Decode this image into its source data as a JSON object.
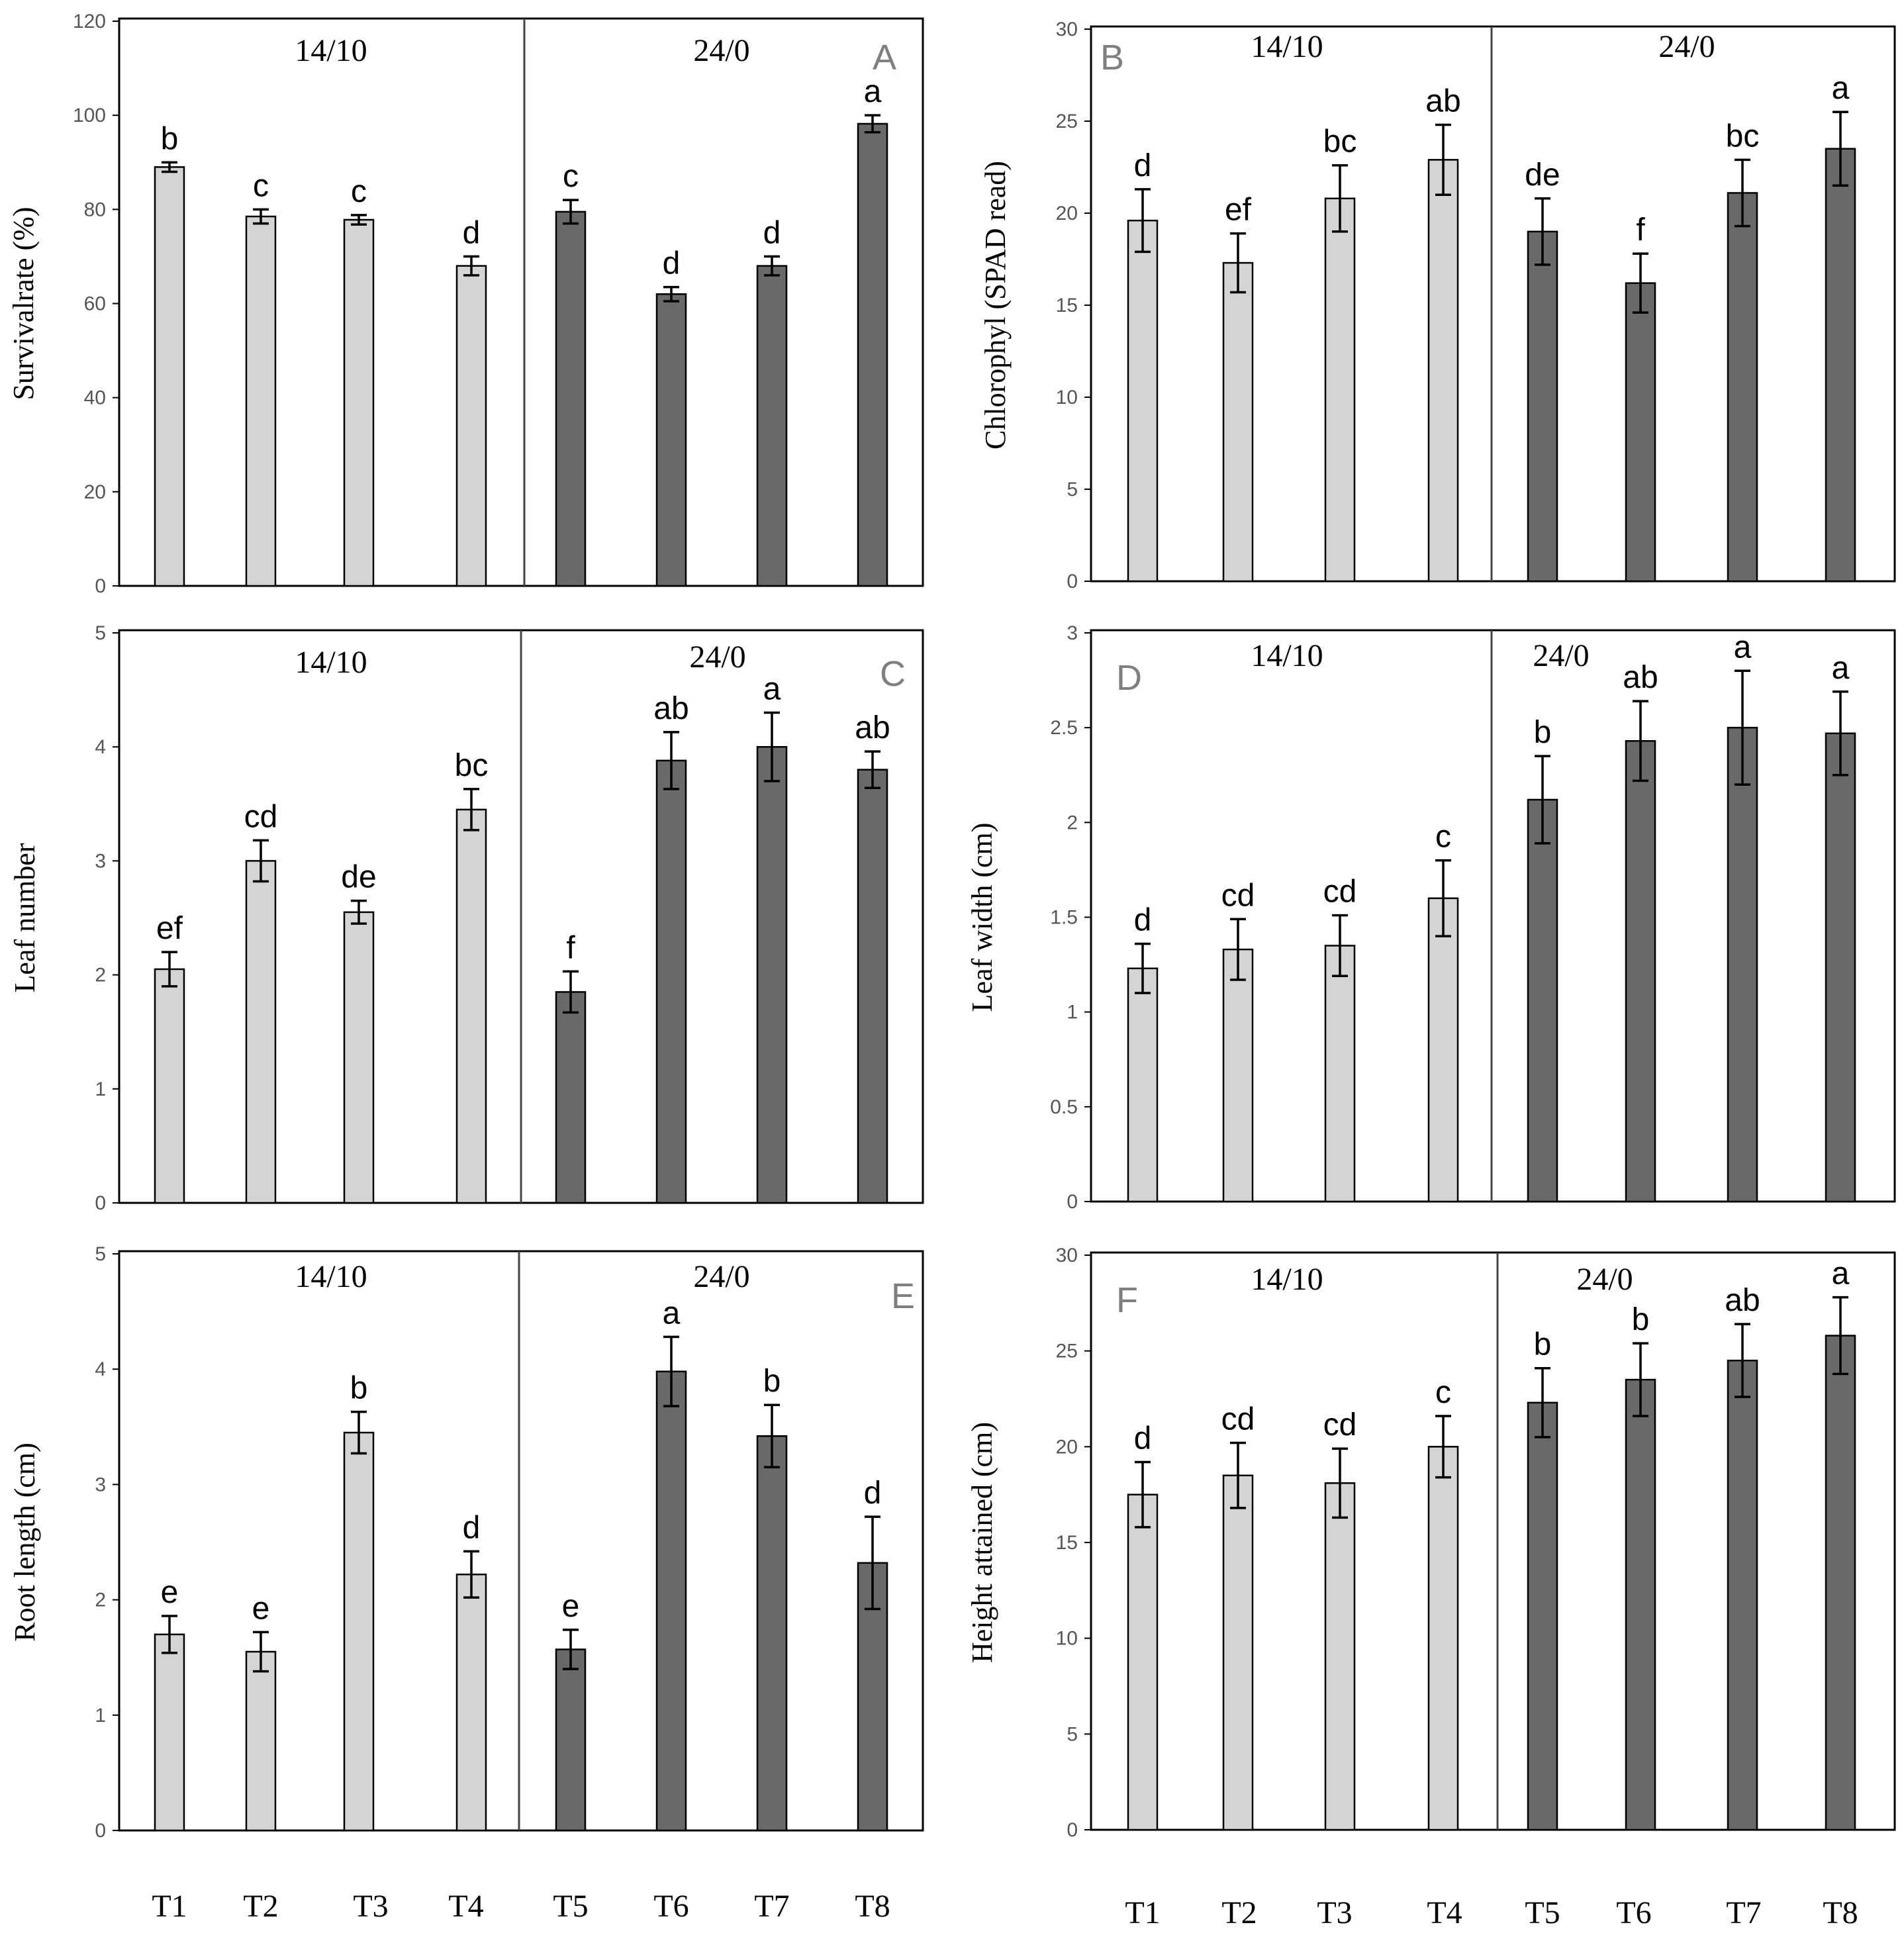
{
  "colors": {
    "light_bar": "#d4d4d4",
    "dark_bar": "#696969",
    "axis": "#000000"
  },
  "groups": [
    "14/10",
    "24/0"
  ],
  "x_categories": [
    "T1",
    "T2",
    "T3",
    "T4",
    "T5",
    "T6",
    "T7",
    "T8"
  ],
  "chart_data": [
    {
      "type": "bar",
      "panel": "A",
      "ylabel": "Survivalrate (%)",
      "ylim": [
        0,
        120
      ],
      "yticks": [
        "0",
        "20",
        "40",
        "60",
        "80",
        "100",
        "120"
      ],
      "groups": [
        "14/10",
        "24/0"
      ],
      "categories": [
        "T1",
        "T2",
        "T3",
        "T4",
        "T5",
        "T6",
        "T7",
        "T8"
      ],
      "values": [
        89,
        78.5,
        77.8,
        68,
        79.5,
        62,
        68,
        98.2
      ],
      "errors": [
        1,
        1.5,
        1,
        2,
        2.5,
        1.5,
        2,
        1.8
      ],
      "labels": [
        "b",
        "c",
        "c",
        "d",
        "c",
        "d",
        "d",
        "a"
      ]
    },
    {
      "type": "bar",
      "panel": "B",
      "ylabel": "Chlorophyl (SPAD read)",
      "ylim": [
        0,
        30
      ],
      "yticks": [
        "0",
        "5",
        "10",
        "15",
        "20",
        "25",
        "30"
      ],
      "groups": [
        "14/10",
        "24/0"
      ],
      "categories": [
        "T1",
        "T2",
        "T3",
        "T4",
        "T5",
        "T6",
        "T7",
        "T8"
      ],
      "values": [
        19.6,
        17.3,
        20.8,
        22.9,
        19,
        16.2,
        21.1,
        23.5
      ],
      "errors": [
        1.7,
        1.6,
        1.8,
        1.9,
        1.8,
        1.6,
        1.8,
        2
      ],
      "labels": [
        "d",
        "ef",
        "bc",
        "ab",
        "de",
        "f",
        "bc",
        "a"
      ]
    },
    {
      "type": "bar",
      "panel": "C",
      "ylabel": "Leaf number",
      "ylim": [
        0,
        5
      ],
      "yticks": [
        "0",
        "1",
        "2",
        "3",
        "4",
        "5"
      ],
      "groups": [
        "14/10",
        "24/0"
      ],
      "categories": [
        "T1",
        "T2",
        "T3",
        "T4",
        "T5",
        "T6",
        "T7",
        "T8"
      ],
      "values": [
        2.05,
        3,
        2.55,
        3.45,
        1.85,
        3.88,
        4,
        3.8
      ],
      "errors": [
        0.15,
        0.18,
        0.1,
        0.18,
        0.18,
        0.25,
        0.3,
        0.16
      ],
      "labels": [
        "ef",
        "cd",
        "de",
        "bc",
        "f",
        "ab",
        "a",
        "ab"
      ]
    },
    {
      "type": "bar",
      "panel": "D",
      "ylabel": "Leaf width (cm)",
      "ylim": [
        0,
        3
      ],
      "yticks": [
        "0",
        "0.5",
        "1",
        "1.5",
        "2",
        "2.5",
        "3"
      ],
      "groups": [
        "14/10",
        "24/0"
      ],
      "categories": [
        "T1",
        "T2",
        "T3",
        "T4",
        "T5",
        "T6",
        "T7",
        "T8"
      ],
      "values": [
        1.23,
        1.33,
        1.35,
        1.6,
        2.12,
        2.43,
        2.5,
        2.47
      ],
      "errors": [
        0.13,
        0.16,
        0.16,
        0.2,
        0.23,
        0.21,
        0.3,
        0.22
      ],
      "labels": [
        "d",
        "cd",
        "cd",
        "c",
        "b",
        "ab",
        "a",
        "a"
      ]
    },
    {
      "type": "bar",
      "panel": "E",
      "ylabel": "Root length (cm)",
      "ylim": [
        0,
        5
      ],
      "yticks": [
        "0",
        "1",
        "2",
        "3",
        "4",
        "5"
      ],
      "groups": [
        "14/10",
        "24/0"
      ],
      "categories": [
        "T1",
        "T2",
        "T3",
        "T4",
        "T5",
        "T6",
        "T7",
        "T8"
      ],
      "values": [
        1.7,
        1.55,
        3.45,
        2.22,
        1.57,
        3.98,
        3.42,
        2.32
      ],
      "errors": [
        0.16,
        0.17,
        0.18,
        0.2,
        0.17,
        0.3,
        0.27,
        0.4
      ],
      "labels": [
        "e",
        "e",
        "b",
        "d",
        "e",
        "a",
        "b",
        "d"
      ]
    },
    {
      "type": "bar",
      "panel": "F",
      "ylabel": "Height attained (cm)",
      "ylim": [
        0,
        30
      ],
      "yticks": [
        "0",
        "5",
        "10",
        "15",
        "20",
        "25",
        "30"
      ],
      "groups": [
        "14/10",
        "24/0"
      ],
      "categories": [
        "T1",
        "T2",
        "T3",
        "T4",
        "T5",
        "T6",
        "T7",
        "T8"
      ],
      "values": [
        17.5,
        18.5,
        18.1,
        20,
        22.3,
        23.5,
        24.5,
        25.8
      ],
      "errors": [
        1.7,
        1.7,
        1.8,
        1.6,
        1.8,
        1.9,
        1.9,
        2
      ],
      "labels": [
        "d",
        "cd",
        "cd",
        "c",
        "b",
        "b",
        "ab",
        "a"
      ]
    }
  ]
}
